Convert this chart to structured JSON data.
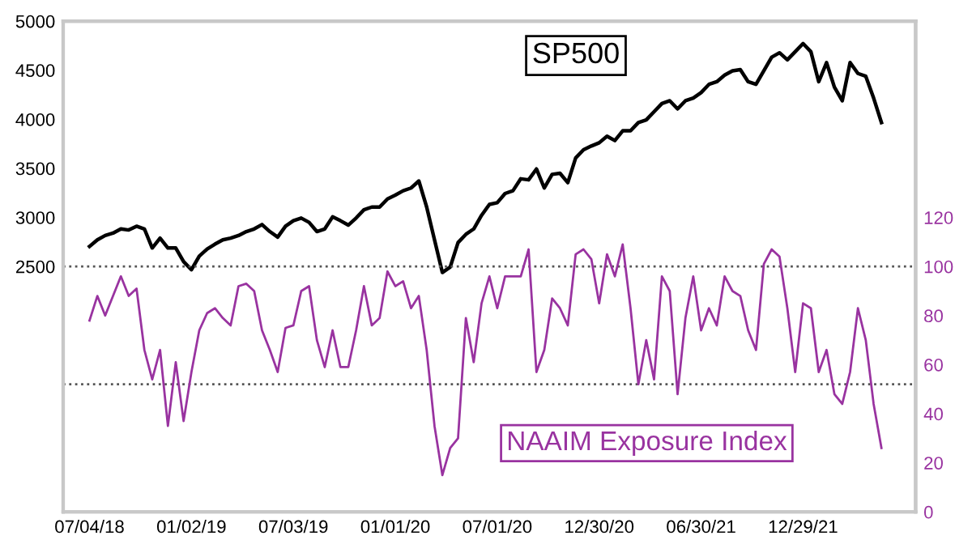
{
  "chart_data": {
    "type": "line",
    "x": [
      "2018-07-04",
      "2018-07-18",
      "2018-08-01",
      "2018-08-15",
      "2018-08-29",
      "2018-09-12",
      "2018-09-26",
      "2018-10-10",
      "2018-10-24",
      "2018-11-07",
      "2018-11-21",
      "2018-12-05",
      "2018-12-19",
      "2019-01-02",
      "2019-01-16",
      "2019-01-30",
      "2019-02-13",
      "2019-02-27",
      "2019-03-13",
      "2019-03-27",
      "2019-04-10",
      "2019-04-24",
      "2019-05-08",
      "2019-05-22",
      "2019-06-05",
      "2019-06-19",
      "2019-07-03",
      "2019-07-17",
      "2019-07-31",
      "2019-08-14",
      "2019-08-28",
      "2019-09-11",
      "2019-09-25",
      "2019-10-09",
      "2019-10-23",
      "2019-11-06",
      "2019-11-20",
      "2019-12-04",
      "2019-12-18",
      "2020-01-01",
      "2020-01-15",
      "2020-01-29",
      "2020-02-12",
      "2020-02-26",
      "2020-03-11",
      "2020-03-25",
      "2020-04-08",
      "2020-04-22",
      "2020-05-06",
      "2020-05-20",
      "2020-06-03",
      "2020-06-17",
      "2020-07-01",
      "2020-07-15",
      "2020-07-29",
      "2020-08-12",
      "2020-08-26",
      "2020-09-09",
      "2020-09-23",
      "2020-10-07",
      "2020-10-21",
      "2020-11-04",
      "2020-11-18",
      "2020-12-02",
      "2020-12-16",
      "2020-12-30",
      "2021-01-13",
      "2021-01-27",
      "2021-02-10",
      "2021-02-24",
      "2021-03-10",
      "2021-03-24",
      "2021-04-07",
      "2021-04-21",
      "2021-05-05",
      "2021-05-19",
      "2021-06-02",
      "2021-06-16",
      "2021-06-30",
      "2021-07-14",
      "2021-07-28",
      "2021-08-11",
      "2021-08-25",
      "2021-09-08",
      "2021-09-22",
      "2021-10-06",
      "2021-10-20",
      "2021-11-03",
      "2021-11-17",
      "2021-12-01",
      "2021-12-15",
      "2021-12-29",
      "2022-01-12",
      "2022-01-26",
      "2022-02-09",
      "2022-02-23",
      "2022-03-09",
      "2022-03-23",
      "2022-04-06",
      "2022-04-20",
      "2022-05-04",
      "2022-05-18"
    ],
    "series": [
      {
        "name": "SP500",
        "color": "#000000",
        "values": [
          2705,
          2772,
          2816,
          2840,
          2883,
          2872,
          2911,
          2883,
          2689,
          2789,
          2689,
          2689,
          2550,
          2467,
          2606,
          2678,
          2728,
          2772,
          2789,
          2816,
          2856,
          2883,
          2928,
          2856,
          2800,
          2911,
          2967,
          2994,
          2950,
          2856,
          2883,
          3006,
          2967,
          2922,
          2994,
          3078,
          3106,
          3106,
          3189,
          3228,
          3272,
          3300,
          3372,
          3106,
          2772,
          2439,
          2494,
          2744,
          2828,
          2883,
          3022,
          3133,
          3150,
          3244,
          3272,
          3394,
          3383,
          3494,
          3300,
          3439,
          3450,
          3355,
          3606,
          3689,
          3728,
          3761,
          3828,
          3783,
          3883,
          3883,
          3967,
          3994,
          4078,
          4161,
          4189,
          4106,
          4189,
          4217,
          4272,
          4356,
          4383,
          4450,
          4494,
          4506,
          4383,
          4356,
          4494,
          4633,
          4678,
          4606,
          4689,
          4772,
          4689,
          4383,
          4578,
          4328,
          4189,
          4578,
          4467,
          4439,
          4217,
          3967
        ]
      },
      {
        "name": "NAAIM Exposure Index",
        "color": "#9933a0",
        "axis": "y2",
        "values": [
          78,
          88,
          80,
          88,
          96,
          88,
          91,
          66,
          54,
          66,
          35,
          61,
          37,
          57,
          74,
          81,
          83,
          79,
          76,
          92,
          93,
          90,
          74,
          66,
          57,
          75,
          76,
          90,
          92,
          70,
          59,
          74,
          59,
          59,
          74,
          92,
          76,
          79,
          98,
          92,
          94,
          83,
          88,
          66,
          35,
          15,
          26,
          30,
          79,
          61,
          85,
          96,
          83,
          96,
          96,
          96,
          107,
          57,
          66,
          87,
          83,
          76,
          105,
          107,
          103,
          85,
          105,
          96,
          109,
          83,
          52,
          70,
          54,
          96,
          90,
          48,
          79,
          96,
          74,
          83,
          76,
          96,
          90,
          88,
          74,
          66,
          101,
          107,
          104,
          83,
          57,
          85,
          83,
          57,
          66,
          48,
          44,
          57,
          83,
          70,
          44,
          26
        ]
      }
    ],
    "xlim": [
      "2018-05-18",
      "2022-07-18"
    ],
    "xticks": [
      {
        "value": "2018-07-04",
        "label": "07/04/18"
      },
      {
        "value": "2019-01-02",
        "label": "01/02/19"
      },
      {
        "value": "2019-07-03",
        "label": "07/03/19"
      },
      {
        "value": "2020-01-01",
        "label": "01/01/20"
      },
      {
        "value": "2020-07-01",
        "label": "07/01/20"
      },
      {
        "value": "2020-12-30",
        "label": "12/30/20"
      },
      {
        "value": "2021-06-30",
        "label": "06/30/21"
      },
      {
        "value": "2021-12-29",
        "label": "12/29/21"
      }
    ],
    "ylim": [
      0,
      5000
    ],
    "yticks": [
      2500,
      3000,
      3500,
      4000,
      4500,
      5000
    ],
    "y2lim": [
      0,
      200
    ],
    "y2ticks": [
      0,
      20,
      40,
      60,
      80,
      100,
      120
    ],
    "ref_lines": [
      {
        "axis": "y2",
        "value": 100,
        "color": "#555555",
        "line_style": "dotted"
      },
      {
        "axis": "y2",
        "value": 52,
        "color": "#555555",
        "line_style": "dotted"
      }
    ],
    "grid": false,
    "legend": false
  }
}
